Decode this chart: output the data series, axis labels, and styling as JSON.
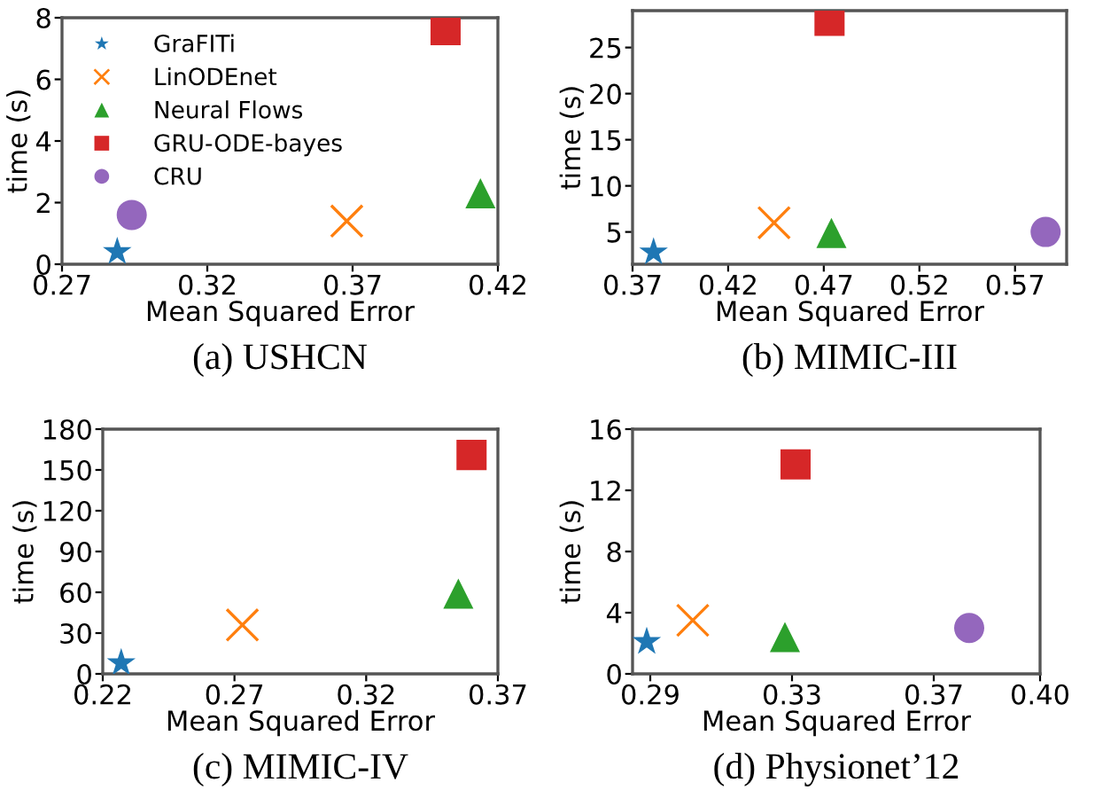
{
  "chart_data": [
    {
      "type": "scatter",
      "title": "(a) USHCN",
      "xlabel": "Mean Squared Error",
      "ylabel": "time (s)",
      "xlim": [
        0.27,
        0.42
      ],
      "xticks": [
        0.27,
        0.32,
        0.37,
        0.42
      ],
      "ylim": [
        0,
        8
      ],
      "yticks": [
        0,
        2,
        4,
        6,
        8
      ],
      "legend": "top left",
      "grid": false,
      "series": [
        {
          "name": "GraFITi",
          "color": "#1f77b4",
          "marker": "star",
          "x": [
            0.289
          ],
          "values": [
            0.4
          ]
        },
        {
          "name": "LinODEnet",
          "color": "#ff7f0e",
          "marker": "cross",
          "x": [
            0.368
          ],
          "values": [
            1.4
          ]
        },
        {
          "name": "Neural Flows",
          "color": "#2ca02c",
          "marker": "triangle",
          "x": [
            0.414
          ],
          "values": [
            2.3
          ]
        },
        {
          "name": "GRU-ODE-bayes",
          "color": "#d62728",
          "marker": "square",
          "x": [
            0.402
          ],
          "values": [
            7.6
          ]
        },
        {
          "name": "CRU",
          "color": "#9467bd",
          "marker": "circle",
          "x": [
            0.294
          ],
          "values": [
            1.6
          ]
        }
      ]
    },
    {
      "type": "scatter",
      "title": "(b) MIMIC-III",
      "xlabel": "Mean Squared Error",
      "ylabel": "time (s)",
      "xlim": [
        0.37,
        0.597
      ],
      "xticks": [
        0.37,
        0.42,
        0.47,
        0.52,
        0.57
      ],
      "ylim": [
        1.5,
        29
      ],
      "yticks": [
        5,
        10,
        15,
        20,
        25
      ],
      "grid": false,
      "series": [
        {
          "color": "#1f77b4",
          "marker": "star",
          "x": [
            0.381
          ],
          "values": [
            2.8
          ]
        },
        {
          "color": "#ff7f0e",
          "marker": "cross",
          "x": [
            0.444
          ],
          "values": [
            6.0
          ]
        },
        {
          "color": "#2ca02c",
          "marker": "triangle",
          "x": [
            0.474
          ],
          "values": [
            4.9
          ]
        },
        {
          "color": "#d62728",
          "marker": "square",
          "x": [
            0.473
          ],
          "values": [
            27.9
          ]
        },
        {
          "color": "#9467bd",
          "marker": "circle",
          "x": [
            0.586
          ],
          "values": [
            5.0
          ]
        }
      ]
    },
    {
      "type": "scatter",
      "title": "(c) MIMIC-IV",
      "xlabel": "Mean Squared Error",
      "ylabel": "time (s)",
      "xlim": [
        0.22,
        0.37
      ],
      "xticks": [
        0.22,
        0.27,
        0.32,
        0.37
      ],
      "ylim": [
        0,
        180
      ],
      "yticks": [
        0,
        30,
        60,
        90,
        120,
        150,
        180
      ],
      "grid": false,
      "series": [
        {
          "color": "#1f77b4",
          "marker": "star",
          "x": [
            0.227
          ],
          "values": [
            8
          ]
        },
        {
          "color": "#ff7f0e",
          "marker": "cross",
          "x": [
            0.273
          ],
          "values": [
            36
          ]
        },
        {
          "color": "#2ca02c",
          "marker": "triangle",
          "x": [
            0.355
          ],
          "values": [
            59
          ]
        },
        {
          "color": "#d62728",
          "marker": "square",
          "x": [
            0.36
          ],
          "values": [
            161
          ]
        }
      ]
    },
    {
      "type": "scatter",
      "title": "(d) Physionet’12",
      "xlabel": "Mean Squared Error",
      "ylabel": "time (s)",
      "xlim": [
        0.285,
        0.4
      ],
      "xticks": [
        0.29,
        0.33,
        0.37,
        {
          "value": 0.4,
          "label": "0.40"
        }
      ],
      "ylim": [
        0,
        16
      ],
      "yticks": [
        0,
        4,
        8,
        12,
        16
      ],
      "grid": false,
      "series": [
        {
          "color": "#1f77b4",
          "marker": "star",
          "x": [
            0.289
          ],
          "values": [
            2.1
          ]
        },
        {
          "color": "#ff7f0e",
          "marker": "cross",
          "x": [
            0.302
          ],
          "values": [
            3.5
          ]
        },
        {
          "color": "#2ca02c",
          "marker": "triangle",
          "x": [
            0.328
          ],
          "values": [
            2.4
          ]
        },
        {
          "color": "#d62728",
          "marker": "square",
          "x": [
            0.331
          ],
          "values": [
            13.7
          ]
        },
        {
          "color": "#9467bd",
          "marker": "circle",
          "x": [
            0.38
          ],
          "values": [
            3.0
          ]
        }
      ]
    }
  ]
}
